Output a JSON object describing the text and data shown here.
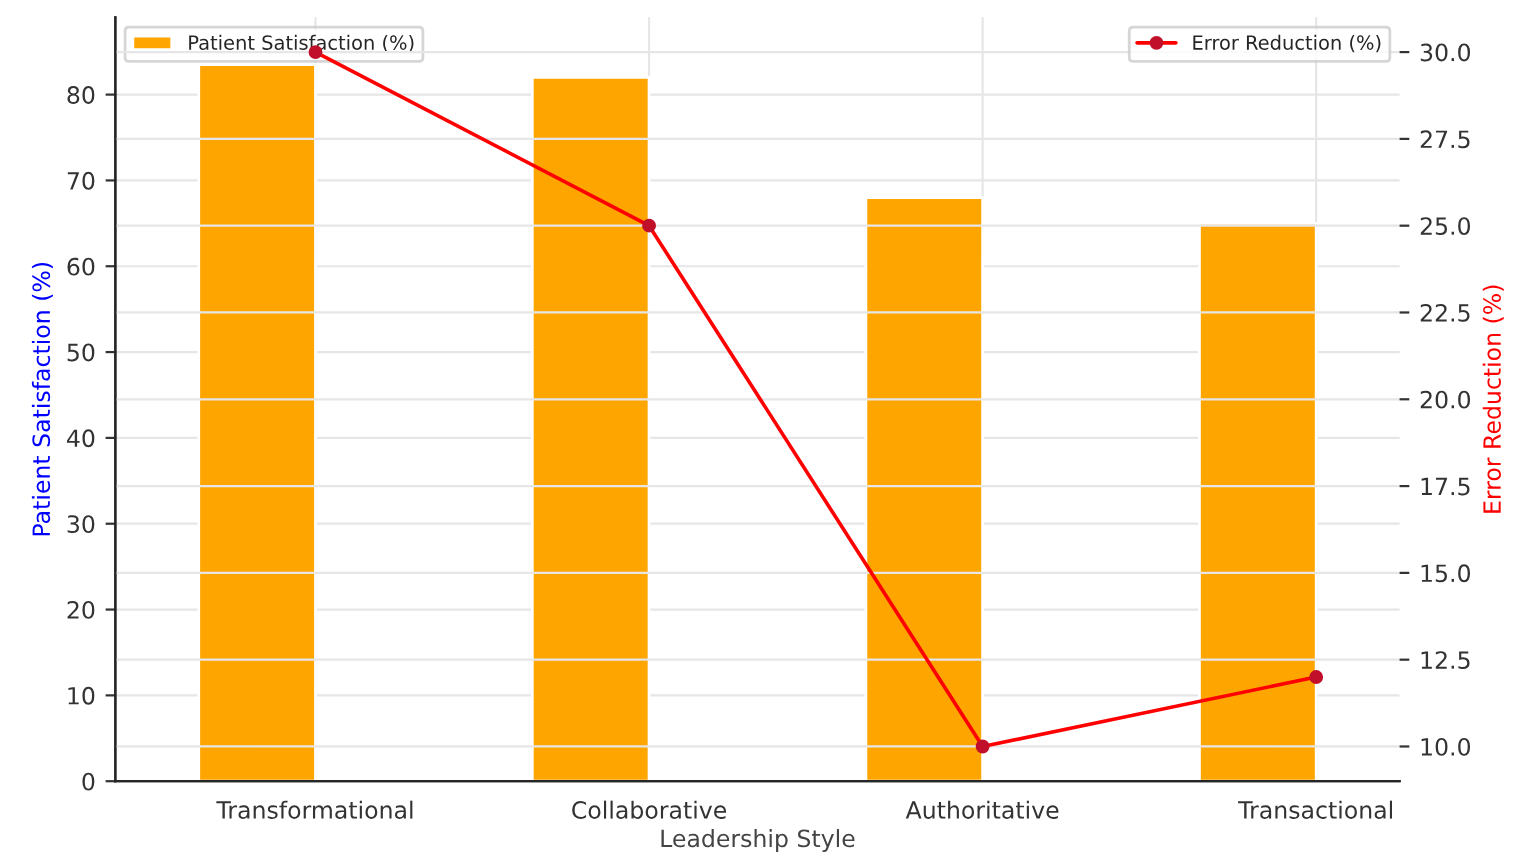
{
  "chart_data": {
    "type": "bar",
    "xlabel": "Leadership Style",
    "ylabel": "Patient Satisfaction (%)",
    "y2label": "Error Reduction (%)",
    "categories": [
      "Transformational",
      "Collaborative",
      "Authoritative",
      "Transactional"
    ],
    "series": [
      {
        "name": "Patient Satisfaction (%)",
        "color": "#ffa500",
        "values": [
          83.5,
          82,
          68,
          65
        ]
      },
      {
        "name": "Error Reduction (%)",
        "type": "line",
        "axis": "y2",
        "color": "#ff0000",
        "marker": "circle",
        "values": [
          30,
          25,
          10,
          12
        ]
      }
    ],
    "ylim": [
      0,
      89
    ],
    "yticks": [
      0,
      10,
      20,
      30,
      40,
      50,
      60,
      70,
      80
    ],
    "y2lim": [
      9,
      31
    ],
    "y2ticks": [
      {
        "value": 10,
        "label": "10.0"
      },
      {
        "value": 12.5,
        "label": "12.5"
      },
      {
        "value": 15,
        "label": "15.0"
      },
      {
        "value": 17.5,
        "label": "17.5"
      },
      {
        "value": 20,
        "label": "20.0"
      },
      {
        "value": 22.5,
        "label": "22.5"
      },
      {
        "value": 25,
        "label": "25.0"
      },
      {
        "value": 27.5,
        "label": "27.5"
      },
      {
        "value": 30,
        "label": "30.0"
      }
    ],
    "grid": true,
    "legend": "top"
  }
}
